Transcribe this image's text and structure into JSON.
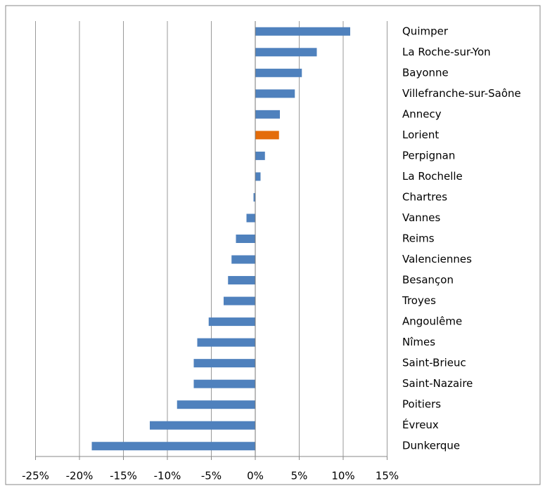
{
  "chart_data": {
    "type": "bar",
    "orientation": "horizontal",
    "categories": [
      "Quimper",
      "La Roche-sur-Yon",
      "Bayonne",
      "Villefranche-sur-Saône",
      "Annecy",
      "Lorient",
      "Perpignan",
      "La Rochelle",
      "Chartres",
      "Vannes",
      "Reims",
      "Valenciennes",
      "Besançon",
      "Troyes",
      "Angoulême",
      "Nîmes",
      "Saint-Brieuc",
      "Saint-Nazaire",
      "Poitiers",
      "Évreux",
      "Dunkerque"
    ],
    "values": [
      10.8,
      7.0,
      5.3,
      4.5,
      2.8,
      2.7,
      1.1,
      0.6,
      -0.2,
      -1.0,
      -2.2,
      -2.7,
      -3.1,
      -3.6,
      -5.3,
      -6.6,
      -7.0,
      -7.0,
      -8.9,
      -12.0,
      -18.6
    ],
    "colors": [
      "#4f81bd",
      "#4f81bd",
      "#4f81bd",
      "#4f81bd",
      "#4f81bd",
      "#e46c0a",
      "#4f81bd",
      "#4f81bd",
      "#4f81bd",
      "#4f81bd",
      "#4f81bd",
      "#4f81bd",
      "#4f81bd",
      "#4f81bd",
      "#4f81bd",
      "#4f81bd",
      "#4f81bd",
      "#4f81bd",
      "#4f81bd",
      "#4f81bd",
      "#4f81bd"
    ],
    "xlim": [
      -25,
      15
    ],
    "xticks": [
      {
        "value": -25,
        "label": "-25%"
      },
      {
        "value": -20,
        "label": "-20%"
      },
      {
        "value": -15,
        "label": "-15%"
      },
      {
        "value": -10,
        "label": "-10%"
      },
      {
        "value": -5,
        "label": "-5%"
      },
      {
        "value": 0,
        "label": "0%"
      },
      {
        "value": 5,
        "label": "5%"
      },
      {
        "value": 10,
        "label": "10%"
      },
      {
        "value": 15,
        "label": "15%"
      }
    ],
    "grid": true
  }
}
